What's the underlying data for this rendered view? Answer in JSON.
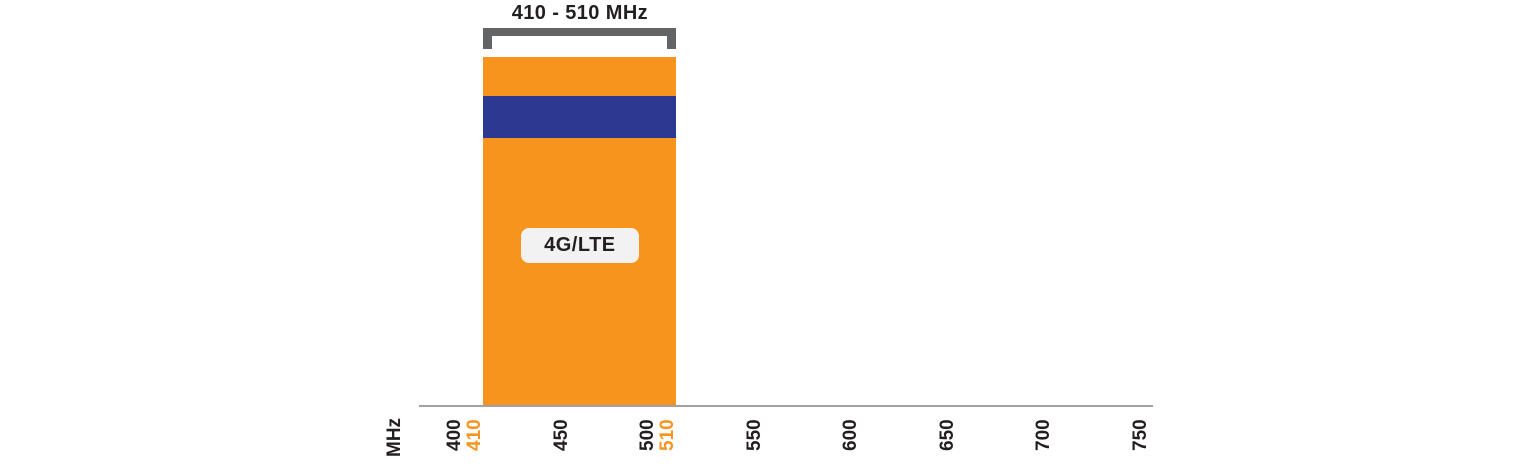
{
  "colors": {
    "band_orange": "#F7941E",
    "stripe_blue": "#2B3990",
    "bracket_gray": "#636466",
    "axis_gray": "#A0A2A5",
    "chip_background": "#F2F2F2",
    "text_black": "#231F20"
  },
  "chart": {
    "range_label": "410 - 510 MHz",
    "band_label": "4G/LTE",
    "axis_unit": "MHz"
  },
  "chart_data": {
    "type": "bar",
    "title": "410 - 510 MHz",
    "xlabel": "MHz",
    "xlim": [
      400,
      750
    ],
    "x_ticks": [
      {
        "value": 400,
        "highlight_pair": 410
      },
      {
        "value": 450
      },
      {
        "value": 500,
        "highlight_pair": 510
      },
      {
        "value": 550
      },
      {
        "value": 600
      },
      {
        "value": 650
      },
      {
        "value": 700
      },
      {
        "value": 750
      }
    ],
    "bands": [
      {
        "label": "4G/LTE",
        "range_label": "410 - 510 MHz",
        "start_mhz": 410,
        "end_mhz": 510,
        "color": "#F7941E",
        "stripe_color": "#2B3990"
      }
    ],
    "grid": false,
    "legend": "none"
  }
}
